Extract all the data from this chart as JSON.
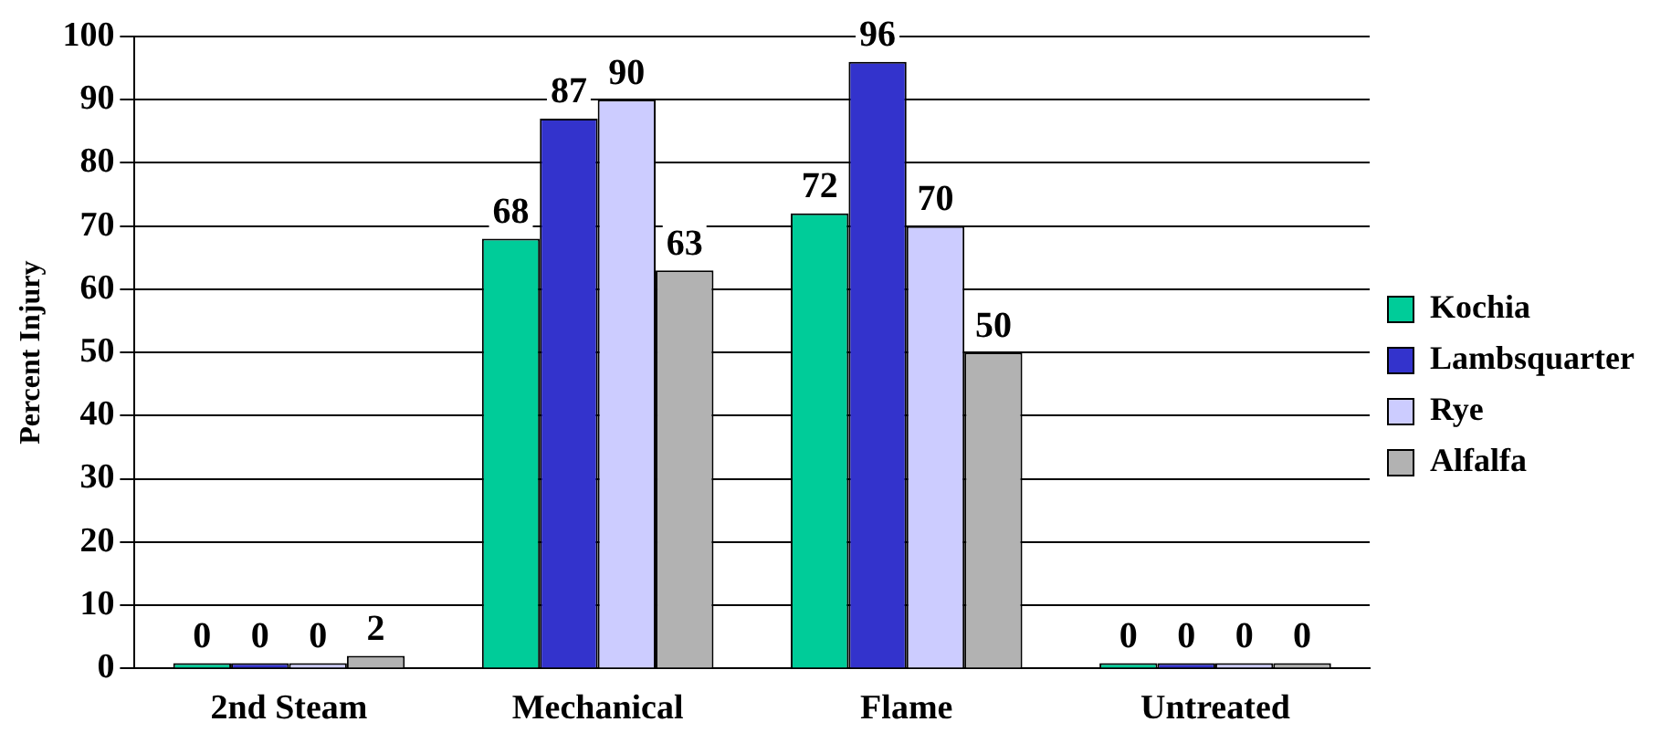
{
  "chart_data": {
    "type": "bar",
    "ylabel": "Percent Injury",
    "categories": [
      "2nd Steam",
      "Mechanical",
      "Flame",
      "Untreated"
    ],
    "series": [
      {
        "name": "Kochia",
        "color": "#00cc99",
        "values": [
          0,
          68,
          72,
          0
        ]
      },
      {
        "name": "Lambsquarter",
        "color": "#3333cc",
        "values": [
          0,
          87,
          96,
          0
        ]
      },
      {
        "name": "Rye",
        "color": "#ccccff",
        "values": [
          0,
          90,
          70,
          0
        ]
      },
      {
        "name": "Alfalfa",
        "color": "#b2b2b2",
        "values": [
          2,
          63,
          50,
          0
        ]
      }
    ],
    "ylim": [
      0,
      100
    ],
    "yticks": [
      0,
      10,
      20,
      30,
      40,
      50,
      60,
      70,
      80,
      90,
      100
    ],
    "grid": "y",
    "legend": "right",
    "data_labels": true
  }
}
